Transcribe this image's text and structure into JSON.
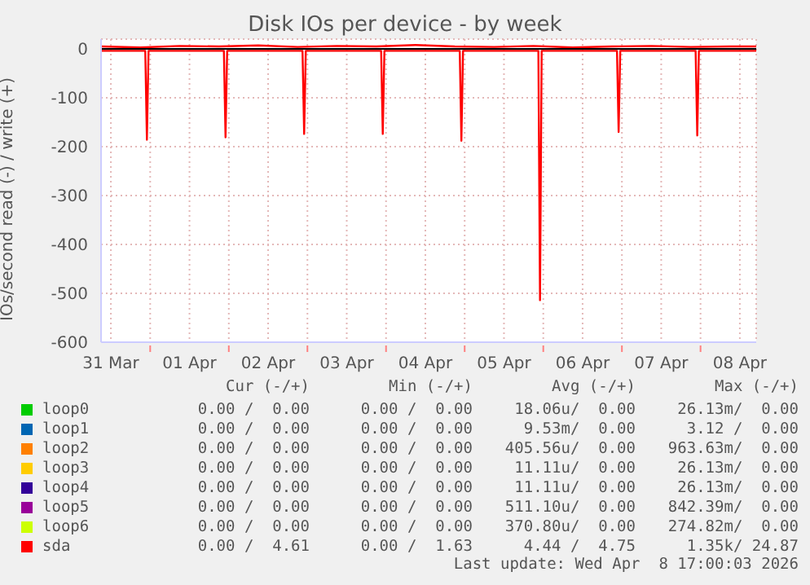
{
  "chart_data": {
    "type": "line",
    "title": "Disk IOs per device - by week",
    "ylabel": "IOs/second read (-) / write (+)",
    "xlim": [
      "2026-03-31T09:00",
      "2026-04-08T17:00"
    ],
    "xticks": [
      {
        "value": "2026-03-31T12:00",
        "label": "31 Mar"
      },
      {
        "value": "2026-04-01T00:00",
        "label": null
      },
      {
        "value": "2026-04-01T12:00",
        "label": "01 Apr"
      },
      {
        "value": "2026-04-02T00:00",
        "label": null
      },
      {
        "value": "2026-04-02T12:00",
        "label": "02 Apr"
      },
      {
        "value": "2026-04-03T00:00",
        "label": null
      },
      {
        "value": "2026-04-03T12:00",
        "label": "03 Apr"
      },
      {
        "value": "2026-04-04T00:00",
        "label": null
      },
      {
        "value": "2026-04-04T12:00",
        "label": "04 Apr"
      },
      {
        "value": "2026-04-05T00:00",
        "label": null
      },
      {
        "value": "2026-04-05T12:00",
        "label": "05 Apr"
      },
      {
        "value": "2026-04-06T00:00",
        "label": null
      },
      {
        "value": "2026-04-06T12:00",
        "label": "06 Apr"
      },
      {
        "value": "2026-04-07T00:00",
        "label": null
      },
      {
        "value": "2026-04-07T12:00",
        "label": "07 Apr"
      },
      {
        "value": "2026-04-08T00:00",
        "label": null
      },
      {
        "value": "2026-04-08T12:00",
        "label": "08 Apr"
      }
    ],
    "ylim": [
      -600,
      20
    ],
    "yticks": [
      -600,
      -500,
      -400,
      -300,
      -200,
      -100,
      0
    ],
    "grid": true,
    "legend": "bottom",
    "ref_lines": [
      {
        "axis": "y",
        "value": 0,
        "color": "#000000"
      }
    ],
    "series": [
      {
        "name": "loop0",
        "color": "#00cc00"
      },
      {
        "name": "loop1",
        "color": "#0066b3"
      },
      {
        "name": "loop2",
        "color": "#ff8000"
      },
      {
        "name": "loop3",
        "color": "#ffcc00"
      },
      {
        "name": "loop4",
        "color": "#330099"
      },
      {
        "name": "loop5",
        "color": "#990099"
      },
      {
        "name": "loop6",
        "color": "#ccff00"
      },
      {
        "name": "sda",
        "color": "#ff0000",
        "x": [
          "2026-03-31T09:00",
          "2026-03-31T22:30",
          "2026-03-31T23:00",
          "2026-03-31T23:30",
          "2026-04-01T22:30",
          "2026-04-01T23:00",
          "2026-04-01T23:30",
          "2026-04-02T22:30",
          "2026-04-02T23:00",
          "2026-04-02T23:30",
          "2026-04-03T22:30",
          "2026-04-03T23:00",
          "2026-04-03T23:30",
          "2026-04-04T22:30",
          "2026-04-04T23:00",
          "2026-04-04T23:30",
          "2026-04-05T22:30",
          "2026-04-05T23:00",
          "2026-04-05T23:30",
          "2026-04-06T22:30",
          "2026-04-06T23:00",
          "2026-04-06T23:30",
          "2026-04-07T22:30",
          "2026-04-07T23:00",
          "2026-04-07T23:30",
          "2026-04-08T17:00"
        ],
        "values": [
          -4,
          -4,
          -186,
          -4,
          -4,
          -181,
          -4,
          -4,
          -174,
          -4,
          -4,
          -174,
          -4,
          -4,
          -188,
          -4,
          -4,
          -514,
          -4,
          -4,
          -170,
          -4,
          -4,
          -177,
          -4,
          -4
        ]
      },
      {
        "color": "#ff0000",
        "x": [
          "2026-03-31T09:00",
          "2026-03-31T21:00",
          "2026-04-01T09:00",
          "2026-04-01T21:00",
          "2026-04-02T09:00",
          "2026-04-02T21:00",
          "2026-04-03T09:00",
          "2026-04-03T21:00",
          "2026-04-04T09:00",
          "2026-04-04T21:00",
          "2026-04-05T09:00",
          "2026-04-05T21:00",
          "2026-04-06T09:00",
          "2026-04-06T21:00",
          "2026-04-07T09:00",
          "2026-04-07T21:00",
          "2026-04-08T09:00",
          "2026-04-08T17:00"
        ],
        "values": [
          5,
          3,
          6,
          5,
          7,
          4,
          6,
          5,
          8,
          5,
          4,
          6,
          3,
          5,
          6,
          4,
          5,
          5
        ]
      }
    ],
    "annotations": [
      "Cur (-/+)",
      "Min (-/+)",
      "Avg (-/+)",
      "Max (-/+)",
      "0.00 /  0.00",
      "0.00 /  0.00",
      "18.06u/  0.00",
      "26.13m/  0.00",
      "0.00 /  0.00",
      "0.00 /  0.00",
      "9.53m/  0.00",
      "3.12 /  0.00",
      "0.00 /  0.00",
      "0.00 /  0.00",
      "405.56u/  0.00",
      "963.63m/  0.00",
      "0.00 /  0.00",
      "0.00 /  0.00",
      "11.11u/  0.00",
      "26.13m/  0.00",
      "0.00 /  0.00",
      "0.00 /  0.00",
      "11.11u/  0.00",
      "26.13m/  0.00",
      "0.00 /  0.00",
      "0.00 /  0.00",
      "511.10u/  0.00",
      "842.39m/  0.00",
      "0.00 /  0.00",
      "0.00 /  0.00",
      "370.80u/  0.00",
      "274.82m/  0.00",
      "0.00 /  4.61",
      "0.00 /  1.63",
      "4.44 /  4.75",
      "1.35k/ 24.87",
      "Last update: Wed Apr  8 17:00:03 2026"
    ]
  }
}
